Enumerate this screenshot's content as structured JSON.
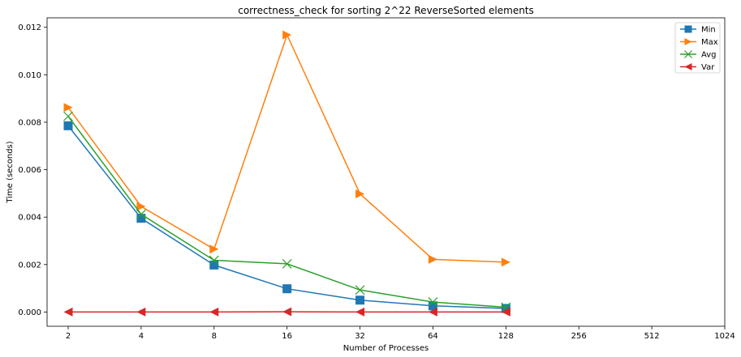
{
  "chart_data": {
    "type": "line",
    "title": "correctness_check for sorting 2^22 ReverseSorted elements",
    "xlabel": "Number of Processes",
    "ylabel": "Time (seconds)",
    "xscale": "log2",
    "x_ticks": [
      "2",
      "4",
      "8",
      "16",
      "32",
      "64",
      "128",
      "256",
      "512",
      "1024"
    ],
    "x_tick_values": [
      2,
      4,
      8,
      16,
      32,
      64,
      128,
      256,
      512,
      1024
    ],
    "y_ticks": [
      "0.000",
      "0.002",
      "0.004",
      "0.006",
      "0.008",
      "0.010",
      "0.012"
    ],
    "y_tick_values": [
      0,
      0.002,
      0.004,
      0.006,
      0.008,
      0.01,
      0.012
    ],
    "xlim": [
      2,
      1024
    ],
    "ylim": [
      -0.0006,
      0.0124
    ],
    "grid": false,
    "legend_position": "top-right",
    "x": [
      2,
      4,
      8,
      16,
      32,
      64,
      128
    ],
    "series": [
      {
        "name": "Min",
        "color": "#1f77b4",
        "marker": "square",
        "values": [
          0.00785,
          0.00395,
          0.00198,
          0.00098,
          0.0005,
          0.00026,
          0.00015
        ]
      },
      {
        "name": "Max",
        "color": "#ff7f0e",
        "marker": "triangle-right",
        "values": [
          0.00862,
          0.00445,
          0.00265,
          0.01168,
          0.00498,
          0.00222,
          0.0021
        ]
      },
      {
        "name": "Avg",
        "color": "#2ca02c",
        "marker": "x",
        "values": [
          0.00825,
          0.00412,
          0.00218,
          0.00203,
          0.00093,
          0.00042,
          0.0002
        ]
      },
      {
        "name": "Var",
        "color": "#d62728",
        "marker": "triangle-left",
        "values": [
          0.0,
          0.0,
          0.0,
          1e-05,
          0.0,
          0.0,
          0.0
        ]
      }
    ]
  }
}
